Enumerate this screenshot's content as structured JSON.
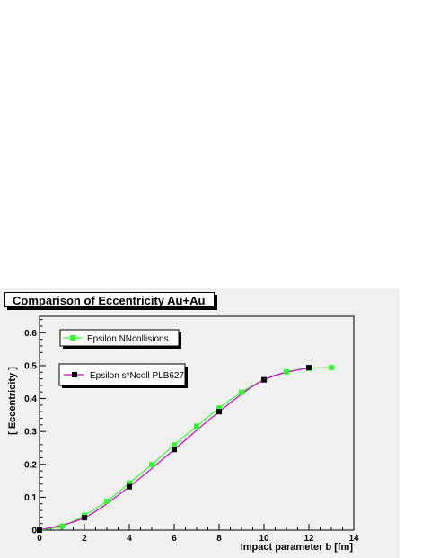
{
  "chart_data": {
    "type": "line",
    "title": "Comparison of Eccentricity  Au+Au",
    "xlabel": "Impact parameter   b [fm]",
    "ylabel": "[ Eccentricity ]",
    "xlim": [
      0,
      14
    ],
    "ylim": [
      0,
      0.65
    ],
    "xticks": [
      "0",
      "2",
      "4",
      "6",
      "8",
      "10",
      "12",
      "14"
    ],
    "yticks": [
      "0",
      "0.1",
      "0.2",
      "0.3",
      "0.4",
      "0.5",
      "0.6"
    ],
    "grid": false,
    "legend_placement": "top-left",
    "series": [
      {
        "name": "Epsilon NNcollisions",
        "color": "#33ff33",
        "x": [
          0,
          1,
          2,
          3,
          4,
          5,
          6,
          7,
          8,
          9,
          10,
          11,
          12,
          13
        ],
        "y": [
          0.0,
          0.012,
          0.045,
          0.088,
          0.143,
          0.199,
          0.259,
          0.316,
          0.371,
          0.419,
          0.457,
          0.481,
          0.492,
          0.494
        ]
      },
      {
        "name": "Epsilon s*Ncoll PLB627",
        "color": "#000000",
        "line_color": "#cc00cc",
        "x": [
          0,
          2,
          4,
          6,
          8,
          10,
          12
        ],
        "y": [
          0.0,
          0.038,
          0.132,
          0.245,
          0.36,
          0.457,
          0.494
        ]
      }
    ]
  }
}
